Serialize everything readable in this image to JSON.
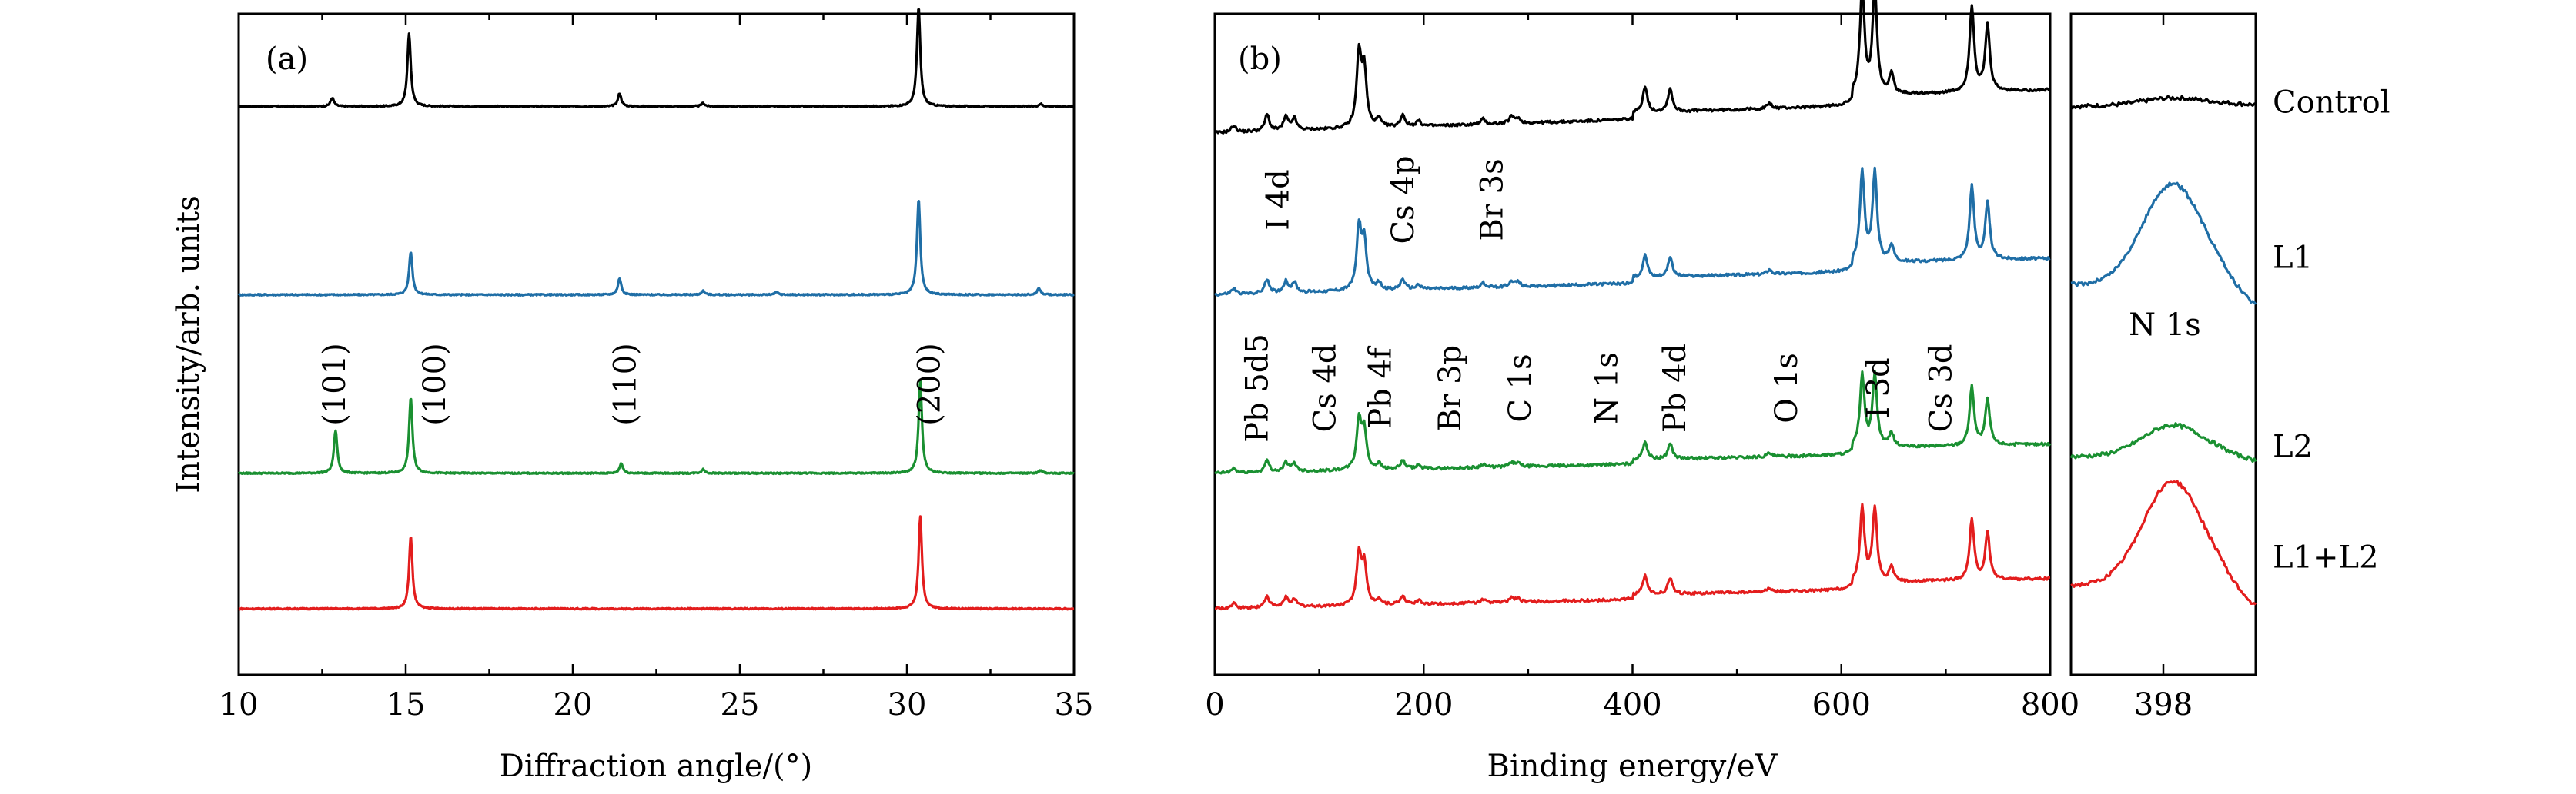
{
  "colors": {
    "control": "#000000",
    "L1": "#1f6ea6",
    "L2": "#1a9031",
    "L1+L2": "#e31d1d"
  },
  "chart_data": [
    {
      "type": "line",
      "panel": "(a)",
      "xlabel": "Diffraction angle/(°)",
      "ylabel": "Intensity/arb. units",
      "xlim": [
        10,
        35
      ],
      "xticks": [
        "10",
        "15",
        "20",
        "25",
        "30",
        "35"
      ],
      "peak_labels": [
        {
          "text": "(101)",
          "x": 12.9
        },
        {
          "text": "(100)",
          "x": 15.9
        },
        {
          "text": "(110)",
          "x": 21.6
        },
        {
          "text": "(200)",
          "x": 30.7
        }
      ],
      "series": [
        {
          "key": "control",
          "offset": 0.86,
          "peaks": [
            [
              12.8,
              0.013
            ],
            [
              15.1,
              0.11
            ],
            [
              21.4,
              0.02
            ],
            [
              23.9,
              0.005
            ],
            [
              30.35,
              0.15
            ],
            [
              34.0,
              0.004
            ]
          ]
        },
        {
          "key": "L1",
          "offset": 0.575,
          "peaks": [
            [
              15.15,
              0.065
            ],
            [
              21.4,
              0.025
            ],
            [
              23.9,
              0.006
            ],
            [
              26.1,
              0.004
            ],
            [
              30.35,
              0.145
            ],
            [
              33.95,
              0.01
            ]
          ]
        },
        {
          "key": "L2",
          "offset": 0.305,
          "peaks": [
            [
              12.9,
              0.065
            ],
            [
              15.15,
              0.115
            ],
            [
              21.45,
              0.015
            ],
            [
              23.9,
              0.006
            ],
            [
              30.4,
              0.14
            ],
            [
              34.0,
              0.004
            ]
          ]
        },
        {
          "key": "L1+L2",
          "offset": 0.1,
          "peaks": [
            [
              15.15,
              0.11
            ],
            [
              30.4,
              0.14
            ]
          ]
        }
      ]
    },
    {
      "type": "line",
      "panel": "(b)",
      "xlabel": "Binding energy/eV",
      "xlim": [
        0,
        800
      ],
      "xticks": [
        "0",
        "200",
        "400",
        "600",
        "800"
      ],
      "peak_labels": [
        {
          "text": "Pb 5d5",
          "x": 40,
          "row": "low"
        },
        {
          "text": "I 4d",
          "x": 60,
          "row": "high"
        },
        {
          "text": "Cs 4d",
          "x": 105,
          "row": "low"
        },
        {
          "text": "Pb 4f",
          "x": 158,
          "row": "low"
        },
        {
          "text": "Cs 4p",
          "x": 180,
          "row": "high"
        },
        {
          "text": "Br 3p",
          "x": 225,
          "row": "low"
        },
        {
          "text": "Br 3s",
          "x": 265,
          "row": "high"
        },
        {
          "text": "C 1s",
          "x": 292,
          "row": "low"
        },
        {
          "text": "N 1s",
          "x": 375,
          "row": "low"
        },
        {
          "text": "Pb 4d",
          "x": 440,
          "row": "low"
        },
        {
          "text": "O 1s",
          "x": 547,
          "row": "low"
        },
        {
          "text": "I 3d",
          "x": 635,
          "row": "low"
        },
        {
          "text": "Cs 3d",
          "x": 695,
          "row": "low"
        }
      ],
      "series": [
        {
          "key": "control",
          "offset": 0.82,
          "scale": 1.0
        },
        {
          "key": "L1",
          "offset": 0.575,
          "scale": 0.85
        },
        {
          "key": "L2",
          "offset": 0.305,
          "scale": 0.68
        },
        {
          "key": "L1+L2",
          "offset": 0.1,
          "scale": 0.7
        }
      ],
      "peaks": [
        [
          18,
          0.01
        ],
        [
          50,
          0.025
        ],
        [
          68,
          0.02
        ],
        [
          76,
          0.018
        ],
        [
          138,
          0.11
        ],
        [
          143,
          0.085
        ],
        [
          157,
          0.012
        ],
        [
          180,
          0.018
        ],
        [
          195,
          0.008
        ],
        [
          257,
          0.008
        ],
        [
          284,
          0.01
        ],
        [
          290,
          0.008
        ],
        [
          412,
          0.04
        ],
        [
          436,
          0.035
        ],
        [
          531,
          0.008
        ],
        [
          620,
          0.16
        ],
        [
          632,
          0.16
        ],
        [
          648,
          0.03
        ],
        [
          725,
          0.13
        ],
        [
          740,
          0.1
        ]
      ]
    },
    {
      "type": "line",
      "panel": "N 1s inset",
      "label": "N 1s",
      "xticks": [
        "398"
      ],
      "series_labels": [
        "Control",
        "L1",
        "L2",
        "L1+L2"
      ],
      "series": [
        {
          "key": "control",
          "label": "Control",
          "offset": 0.86,
          "height": 0.01
        },
        {
          "key": "L1",
          "label": "L1",
          "offset": 0.59,
          "height": 0.15
        },
        {
          "key": "L2",
          "label": "L2",
          "offset": 0.33,
          "height": 0.045
        },
        {
          "key": "L1+L2",
          "label": "L1+L2",
          "offset": 0.135,
          "height": 0.155
        }
      ]
    }
  ],
  "panels": {
    "a": {
      "tag": "(a)"
    },
    "b": {
      "tag": "(b)"
    },
    "inset": {
      "n1s_label": "N 1s"
    }
  },
  "axes": {
    "a_ylabel": "Intensity/arb. units",
    "a_xlabel": "Diffraction angle/(°)",
    "b_xlabel": "Binding energy/eV"
  }
}
